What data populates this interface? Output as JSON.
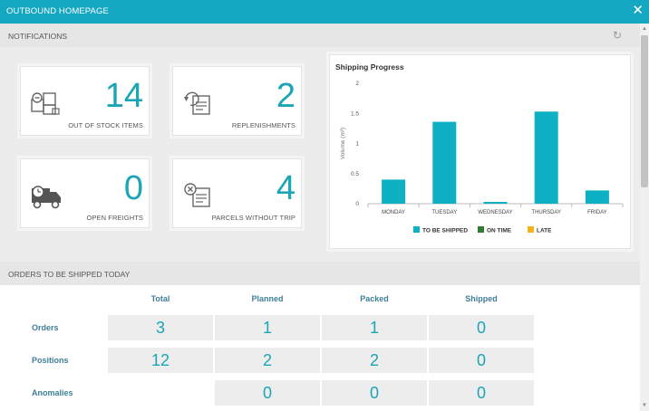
{
  "window": {
    "title": "OUTBOUND HOMEPAGE",
    "close_icon": "close-icon"
  },
  "notifications": {
    "header": "NOTIFICATIONS",
    "refresh_icon": "refresh-icon",
    "cards": [
      {
        "icon": "boxes-icon",
        "value": "14",
        "caption": "OUT OF STOCK ITEMS"
      },
      {
        "icon": "replenish-box-icon",
        "value": "2",
        "caption": "REPLENISHMENTS"
      },
      {
        "icon": "truck-clock-icon",
        "value": "0",
        "caption": "OPEN FREIGHTS"
      },
      {
        "icon": "box-cross-icon",
        "value": "4",
        "caption": "PARCELS WITHOUT TRIP"
      }
    ]
  },
  "chart_data": {
    "type": "bar",
    "title": "Shipping Progress",
    "ylabel": "Volume (m³)",
    "xlabel": "",
    "categories": [
      "MONDAY",
      "TUESDAY",
      "WEDNESDAY",
      "THURSDAY",
      "FRIDAY"
    ],
    "series": [
      {
        "name": "TO BE SHIPPED",
        "color": "#0eb0c4",
        "values": [
          0.4,
          1.36,
          0.03,
          1.53,
          0.22
        ]
      },
      {
        "name": "ON TIME",
        "color": "#2e7d32",
        "values": [
          0,
          0,
          0,
          0,
          0
        ]
      },
      {
        "name": "LATE",
        "color": "#f5b21b",
        "values": [
          0,
          0,
          0,
          0,
          0
        ]
      }
    ],
    "ylim": [
      0,
      2
    ],
    "yticks": [
      "0",
      "0.5",
      "1",
      "1.5",
      "2"
    ],
    "grid": false,
    "legend": "bottom"
  },
  "orders": {
    "header": "ORDERS TO BE SHIPPED TODAY",
    "columns": [
      "Total",
      "Planned",
      "Packed",
      "Shipped"
    ],
    "rows": [
      {
        "label": "Orders",
        "values": [
          "3",
          "1",
          "1",
          "0"
        ]
      },
      {
        "label": "Positions",
        "values": [
          "12",
          "2",
          "2",
          "0"
        ]
      },
      {
        "label": "Anomalies",
        "values": [
          "",
          "0",
          "0",
          "0"
        ]
      }
    ]
  },
  "colors": {
    "accent": "#14a7c1",
    "value_text": "#1ba5b5",
    "row_label": "#3e7f97"
  }
}
